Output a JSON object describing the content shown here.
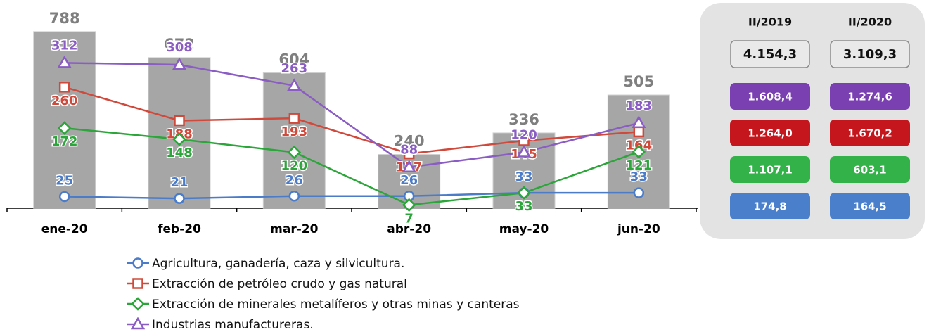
{
  "chart_data": {
    "type": "bar-line",
    "categories": [
      "ene-20",
      "feb-20",
      "mar-20",
      "abr-20",
      "may-20",
      "jun-20"
    ],
    "ylim": [
      0,
      800
    ],
    "y2lim": [
      0,
      385
    ],
    "series": [
      {
        "type": "bar",
        "color": "#a6a6a6",
        "label_color": "#7f7f7f",
        "values": [
          788,
          672,
          604,
          240,
          336,
          505
        ]
      },
      {
        "type": "line",
        "axis": "y2",
        "marker": "circle",
        "name": "Agricultura, ganadería, caza y silvicultura.",
        "color": "#4a7cc9",
        "values": [
          25,
          21,
          26,
          26,
          33,
          33
        ]
      },
      {
        "type": "line",
        "axis": "y2",
        "marker": "square",
        "name": "Extracción de petróleo crudo y gas natural",
        "color": "#d04a3c",
        "values": [
          260,
          188,
          193,
          117,
          145,
          164
        ]
      },
      {
        "type": "line",
        "axis": "y2",
        "marker": "diamond",
        "name": "Extracción de minerales metalíferos y otras minas y canteras",
        "color": "#2ca53a",
        "values": [
          172,
          148,
          120,
          7,
          33,
          121
        ]
      },
      {
        "type": "line",
        "axis": "y2",
        "marker": "triangle",
        "name": "Industrias manufactureras.",
        "color": "#8a5cc4",
        "values": [
          312,
          308,
          263,
          88,
          120,
          183
        ]
      }
    ]
  },
  "side_table": {
    "headers": [
      "II/2019",
      "II/2020"
    ],
    "total": [
      "4.154,3",
      "3.109,3"
    ],
    "rows": [
      {
        "color": "#7a3fb0",
        "cells": [
          "1.608,4",
          "1.274,6"
        ]
      },
      {
        "color": "#c4161c",
        "cells": [
          "1.264,0",
          "1.670,2"
        ]
      },
      {
        "color": "#33b24a",
        "cells": [
          "1.107,1",
          "603,1"
        ]
      },
      {
        "color": "#4a7fcc",
        "cells": [
          "174,8",
          "164,5"
        ]
      }
    ]
  }
}
